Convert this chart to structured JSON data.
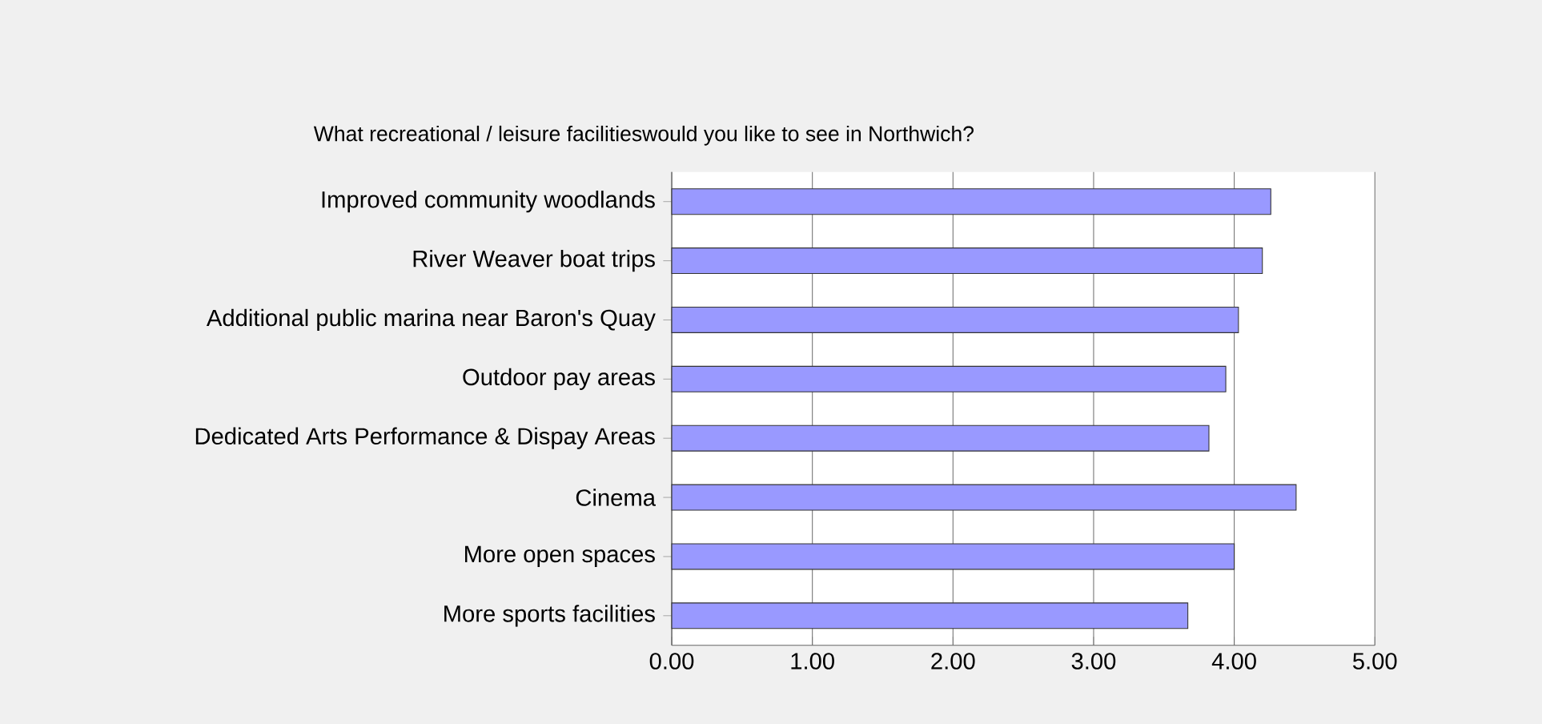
{
  "chart_data": {
    "type": "bar",
    "orientation": "horizontal",
    "title": "What recreational / leisure facilitieswould you like to see in Northwich?",
    "categories": [
      "Improved community woodlands",
      "River Weaver boat trips",
      "Additional public marina near Baron's Quay",
      "Outdoor pay areas",
      "Dedicated Arts Performance & Dispay Areas",
      "Cinema",
      "More open spaces",
      "More sports facilities"
    ],
    "values": [
      4.26,
      4.2,
      4.03,
      3.94,
      3.82,
      4.44,
      4.0,
      3.67
    ],
    "color": "#9999ff",
    "xlim": [
      0,
      5
    ],
    "xticks": [
      {
        "value": 0,
        "label": "0.00"
      },
      {
        "value": 1,
        "label": "1.00"
      },
      {
        "value": 2,
        "label": "2.00"
      },
      {
        "value": 3,
        "label": "3.00"
      },
      {
        "value": 4,
        "label": "4.00"
      },
      {
        "value": 5,
        "label": "5.00"
      }
    ],
    "grid": "x"
  }
}
